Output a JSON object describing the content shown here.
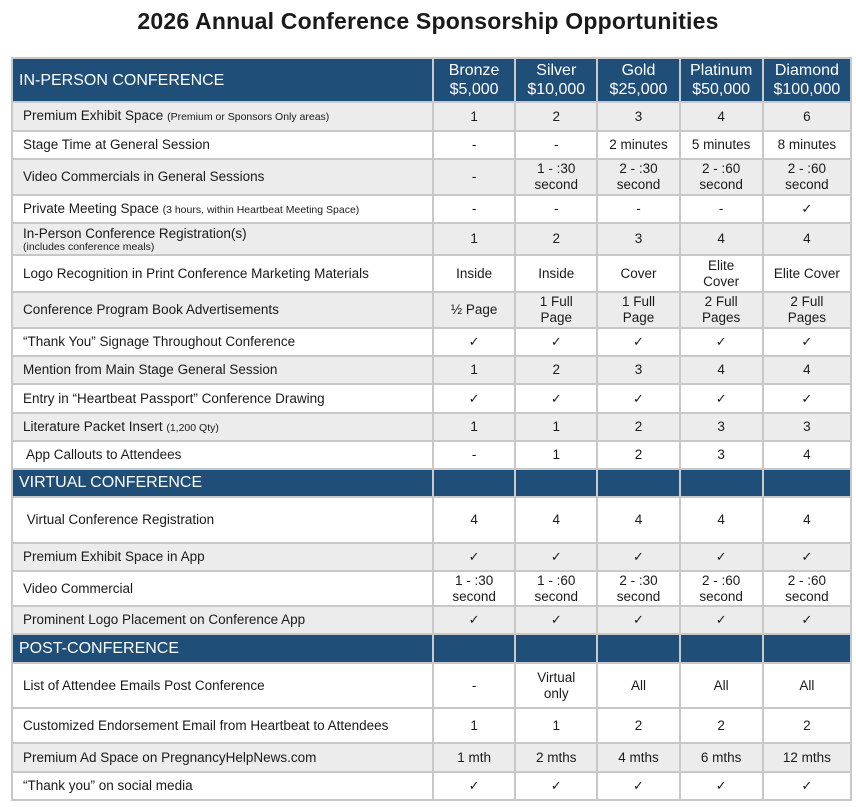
{
  "title": "2026 Annual Conference Sponsorship Opportunities",
  "tiers": [
    {
      "name": "Bronze",
      "price": "$5,000"
    },
    {
      "name": "Silver",
      "price": "$10,000"
    },
    {
      "name": "Gold",
      "price": "$25,000"
    },
    {
      "name": "Platinum",
      "price": "$50,000"
    },
    {
      "name": "Diamond",
      "price": "$100,000"
    }
  ],
  "check_icon": "checkmark-icon",
  "colors": {
    "section_header": "#1f4e79",
    "row_alt": "#ececec",
    "border": "#c8c8c8"
  },
  "sections": [
    {
      "title": "IN-PERSON CONFERENCE",
      "rows": [
        {
          "label": "Premium Exhibit Space",
          "note": "(Premium or Sponsors Only areas)",
          "values": [
            "1",
            "2",
            "3",
            "4",
            "6"
          ]
        },
        {
          "label": "Stage Time at General Session",
          "values": [
            "-",
            "-",
            "2 minutes",
            "5 minutes",
            "8 minutes"
          ]
        },
        {
          "label": "Video Commercials in General Sessions",
          "values": [
            "-",
            "1 - :30\nsecond",
            "2 - :30\nsecond",
            "2 - :60\nsecond",
            "2 - :60\nsecond"
          ]
        },
        {
          "label": "Private Meeting Space",
          "note": "(3 hours, within Heartbeat Meeting Space)",
          "values": [
            "-",
            "-",
            "-",
            "-",
            "✓"
          ]
        },
        {
          "label": "In-Person Conference Registration(s)",
          "subnote": "(includes conference meals)",
          "values": [
            "1",
            "2",
            "3",
            "4",
            "4"
          ]
        },
        {
          "label": "Logo Recognition in Print Conference Marketing Materials",
          "values": [
            "Inside",
            "Inside",
            "Cover",
            "Elite\nCover",
            "Elite Cover"
          ]
        },
        {
          "label": "Conference Program Book Advertisements",
          "values": [
            "½ Page",
            "1 Full\nPage",
            "1 Full\nPage",
            "2 Full\nPages",
            "2 Full\nPages"
          ]
        },
        {
          "label": "“Thank You” Signage Throughout Conference",
          "values": [
            "✓",
            "✓",
            "✓",
            "✓",
            "✓"
          ]
        },
        {
          "label": "Mention from Main Stage General Session",
          "values": [
            "1",
            "2",
            "3",
            "4",
            "4"
          ]
        },
        {
          "label": "Entry in “Heartbeat Passport” Conference Drawing",
          "values": [
            "✓",
            "✓",
            "✓",
            "✓",
            "✓"
          ]
        },
        {
          "label": "Literature Packet Insert",
          "note": "(1,200 Qty)",
          "values": [
            "1",
            "1",
            "2",
            "3",
            "3"
          ]
        },
        {
          "label": " App Callouts to Attendees",
          "values": [
            "-",
            "1",
            "2",
            "3",
            "4"
          ]
        }
      ]
    },
    {
      "title": "VIRTUAL CONFERENCE",
      "rows": [
        {
          "label": " Virtual Conference Registration",
          "values": [
            "4",
            "4",
            "4",
            "4",
            "4"
          ]
        },
        {
          "label": "Premium Exhibit Space in App",
          "values": [
            "✓",
            "✓",
            "✓",
            "✓",
            "✓"
          ]
        },
        {
          "label": "Video Commercial",
          "values": [
            "1 - :30\nsecond",
            "1 - :60\nsecond",
            "2 - :30\nsecond",
            "2 - :60\nsecond",
            "2 - :60\nsecond"
          ]
        },
        {
          "label": "Prominent Logo Placement on Conference App",
          "values": [
            "✓",
            "✓",
            "✓",
            "✓",
            "✓"
          ]
        }
      ]
    },
    {
      "title": "POST-CONFERENCE",
      "rows": [
        {
          "label": "List of Attendee Emails Post Conference",
          "values": [
            "-",
            "Virtual\nonly",
            "All",
            "All",
            "All"
          ]
        },
        {
          "label": "Customized Endorsement Email from Heartbeat to Attendees",
          "values": [
            "1",
            "1",
            "2",
            "2",
            "2"
          ]
        },
        {
          "label": "Premium Ad Space on PregnancyHelpNews.com",
          "values": [
            "1 mth",
            "2 mths",
            "4 mths",
            "6 mths",
            "12 mths"
          ]
        },
        {
          "label": "“Thank you” on social media",
          "values": [
            "✓",
            "✓",
            "✓",
            "✓",
            "✓"
          ]
        }
      ]
    }
  ]
}
